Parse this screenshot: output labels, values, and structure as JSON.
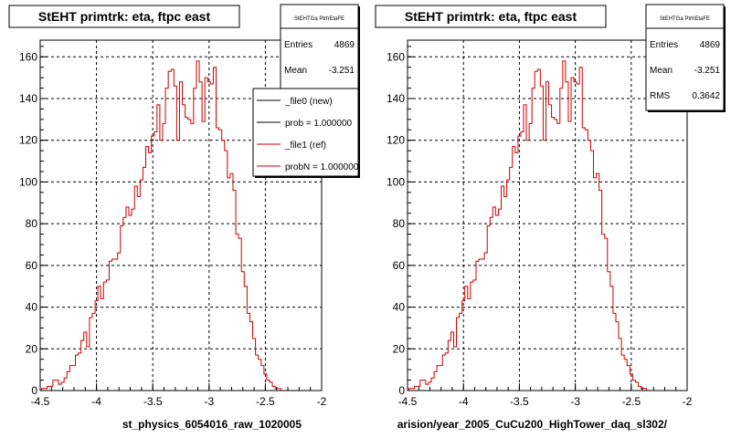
{
  "page": {
    "footer_text": ""
  },
  "chart_data": [
    {
      "type": "bar",
      "title": "StEHT primtrk: eta, ftpc east",
      "xlabel": "st_physics_6054016_raw_1020005",
      "xlim": [
        -4.5,
        -2
      ],
      "ylim": [
        0,
        168
      ],
      "xticks": [
        -4.5,
        -4,
        -3.5,
        -3,
        -2.5,
        -2
      ],
      "xtick_labels": [
        "-4.5",
        "-4",
        "-3.5",
        "-3",
        "-2.5",
        "-2"
      ],
      "yticks": [
        0,
        20,
        40,
        60,
        80,
        100,
        120,
        140,
        160
      ],
      "ytick_labels": [
        "0",
        "20",
        "40",
        "60",
        "80",
        "100",
        "120",
        "140",
        "160"
      ],
      "grid": true,
      "line_color": "#cc0000",
      "stats": {
        "title": "StEHTGa PtrhEtaFE",
        "rows": [
          [
            "Entries",
            "4869"
          ],
          [
            "Mean",
            "-3.251"
          ]
        ]
      },
      "legend": [
        {
          "label": "_file0 (new)",
          "color": "#000000"
        },
        {
          "label": "prob = 1.000000",
          "color": "#000000"
        },
        {
          "label": "_file1 (ref)",
          "color": "#cc0000"
        },
        {
          "label": "probN = 1.000000",
          "color": "#cc0000"
        }
      ],
      "bin_width": 0.025,
      "bins": [
        [
          -4.475,
          1
        ],
        [
          -4.45,
          1
        ],
        [
          -4.425,
          2
        ],
        [
          -4.4,
          2
        ],
        [
          -4.375,
          5
        ],
        [
          -4.35,
          5
        ],
        [
          -4.325,
          3
        ],
        [
          -4.3,
          4
        ],
        [
          -4.275,
          6
        ],
        [
          -4.25,
          9
        ],
        [
          -4.225,
          12
        ],
        [
          -4.2,
          12
        ],
        [
          -4.175,
          17
        ],
        [
          -4.15,
          18
        ],
        [
          -4.125,
          24
        ],
        [
          -4.1,
          28
        ],
        [
          -4.075,
          21
        ],
        [
          -4.05,
          35
        ],
        [
          -4.025,
          37
        ],
        [
          -4.0,
          43
        ],
        [
          -3.975,
          50
        ],
        [
          -3.95,
          44
        ],
        [
          -3.925,
          52
        ],
        [
          -3.9,
          53
        ],
        [
          -3.875,
          62
        ],
        [
          -3.85,
          63
        ],
        [
          -3.825,
          63
        ],
        [
          -3.8,
          66
        ],
        [
          -3.775,
          79
        ],
        [
          -3.75,
          83
        ],
        [
          -3.725,
          88
        ],
        [
          -3.7,
          84
        ],
        [
          -3.675,
          87
        ],
        [
          -3.65,
          98
        ],
        [
          -3.625,
          93
        ],
        [
          -3.6,
          101
        ],
        [
          -3.575,
          107
        ],
        [
          -3.55,
          117
        ],
        [
          -3.525,
          114
        ],
        [
          -3.5,
          122
        ],
        [
          -3.475,
          124
        ],
        [
          -3.45,
          137
        ],
        [
          -3.425,
          120
        ],
        [
          -3.4,
          128
        ],
        [
          -3.375,
          145
        ],
        [
          -3.35,
          153
        ],
        [
          -3.325,
          154
        ],
        [
          -3.3,
          146
        ],
        [
          -3.275,
          120
        ],
        [
          -3.25,
          148
        ],
        [
          -3.225,
          137
        ],
        [
          -3.2,
          131
        ],
        [
          -3.175,
          130
        ],
        [
          -3.15,
          128
        ],
        [
          -3.125,
          145
        ],
        [
          -3.1,
          158
        ],
        [
          -3.075,
          148
        ],
        [
          -3.05,
          129
        ],
        [
          -3.025,
          150
        ],
        [
          -3.0,
          148
        ],
        [
          -2.975,
          147
        ],
        [
          -2.95,
          155
        ],
        [
          -2.925,
          126
        ],
        [
          -2.9,
          125
        ],
        [
          -2.875,
          120
        ],
        [
          -2.85,
          115
        ],
        [
          -2.825,
          102
        ],
        [
          -2.8,
          104
        ],
        [
          -2.775,
          96
        ],
        [
          -2.75,
          75
        ],
        [
          -2.725,
          73
        ],
        [
          -2.7,
          57
        ],
        [
          -2.675,
          50
        ],
        [
          -2.65,
          37
        ],
        [
          -2.625,
          33
        ],
        [
          -2.6,
          25
        ],
        [
          -2.575,
          17
        ],
        [
          -2.55,
          15
        ],
        [
          -2.525,
          12
        ],
        [
          -2.5,
          8
        ],
        [
          -2.475,
          5
        ],
        [
          -2.45,
          4
        ],
        [
          -2.425,
          2
        ],
        [
          -2.4,
          1
        ],
        [
          -2.375,
          1
        ]
      ]
    },
    {
      "type": "bar",
      "title": "StEHT primtrk: eta, ftpc east",
      "xlabel": "arision/year_2005_CuCu200_HighTower_daq_sl302/",
      "xlim": [
        -4.5,
        -2
      ],
      "ylim": [
        0,
        168
      ],
      "xticks": [
        -4.5,
        -4,
        -3.5,
        -3,
        -2.5,
        -2
      ],
      "xtick_labels": [
        "-4.5",
        "-4",
        "-3.5",
        "-3",
        "-2.5",
        "-2"
      ],
      "yticks": [
        0,
        20,
        40,
        60,
        80,
        100,
        120,
        140,
        160
      ],
      "ytick_labels": [
        "0",
        "20",
        "40",
        "60",
        "80",
        "100",
        "120",
        "140",
        "160"
      ],
      "grid": true,
      "line_color": "#cc0000",
      "stats": {
        "title": "StEHTGa PtrhEtaFE",
        "rows": [
          [
            "Entries",
            "4869"
          ],
          [
            "Mean",
            "-3.251"
          ],
          [
            "RMS",
            "0.3642"
          ]
        ]
      },
      "legend": [],
      "bin_width": 0.025,
      "bins": [
        [
          -4.475,
          1
        ],
        [
          -4.45,
          1
        ],
        [
          -4.425,
          2
        ],
        [
          -4.4,
          2
        ],
        [
          -4.375,
          5
        ],
        [
          -4.35,
          5
        ],
        [
          -4.325,
          3
        ],
        [
          -4.3,
          4
        ],
        [
          -4.275,
          6
        ],
        [
          -4.25,
          9
        ],
        [
          -4.225,
          12
        ],
        [
          -4.2,
          12
        ],
        [
          -4.175,
          17
        ],
        [
          -4.15,
          18
        ],
        [
          -4.125,
          24
        ],
        [
          -4.1,
          28
        ],
        [
          -4.075,
          21
        ],
        [
          -4.05,
          35
        ],
        [
          -4.025,
          37
        ],
        [
          -4.0,
          43
        ],
        [
          -3.975,
          50
        ],
        [
          -3.95,
          44
        ],
        [
          -3.925,
          52
        ],
        [
          -3.9,
          53
        ],
        [
          -3.875,
          62
        ],
        [
          -3.85,
          63
        ],
        [
          -3.825,
          63
        ],
        [
          -3.8,
          66
        ],
        [
          -3.775,
          79
        ],
        [
          -3.75,
          83
        ],
        [
          -3.725,
          88
        ],
        [
          -3.7,
          84
        ],
        [
          -3.675,
          87
        ],
        [
          -3.65,
          98
        ],
        [
          -3.625,
          93
        ],
        [
          -3.6,
          101
        ],
        [
          -3.575,
          107
        ],
        [
          -3.55,
          117
        ],
        [
          -3.525,
          114
        ],
        [
          -3.5,
          122
        ],
        [
          -3.475,
          124
        ],
        [
          -3.45,
          137
        ],
        [
          -3.425,
          120
        ],
        [
          -3.4,
          128
        ],
        [
          -3.375,
          145
        ],
        [
          -3.35,
          153
        ],
        [
          -3.325,
          154
        ],
        [
          -3.3,
          146
        ],
        [
          -3.275,
          120
        ],
        [
          -3.25,
          148
        ],
        [
          -3.225,
          137
        ],
        [
          -3.2,
          131
        ],
        [
          -3.175,
          130
        ],
        [
          -3.15,
          128
        ],
        [
          -3.125,
          145
        ],
        [
          -3.1,
          158
        ],
        [
          -3.075,
          148
        ],
        [
          -3.05,
          129
        ],
        [
          -3.025,
          150
        ],
        [
          -3.0,
          148
        ],
        [
          -2.975,
          147
        ],
        [
          -2.95,
          155
        ],
        [
          -2.925,
          126
        ],
        [
          -2.9,
          125
        ],
        [
          -2.875,
          120
        ],
        [
          -2.85,
          115
        ],
        [
          -2.825,
          102
        ],
        [
          -2.8,
          104
        ],
        [
          -2.775,
          96
        ],
        [
          -2.75,
          75
        ],
        [
          -2.725,
          73
        ],
        [
          -2.7,
          57
        ],
        [
          -2.675,
          50
        ],
        [
          -2.65,
          37
        ],
        [
          -2.625,
          33
        ],
        [
          -2.6,
          25
        ],
        [
          -2.575,
          17
        ],
        [
          -2.55,
          15
        ],
        [
          -2.525,
          12
        ],
        [
          -2.5,
          8
        ],
        [
          -2.475,
          5
        ],
        [
          -2.45,
          4
        ],
        [
          -2.425,
          2
        ],
        [
          -2.4,
          1
        ],
        [
          -2.375,
          1
        ]
      ]
    }
  ]
}
